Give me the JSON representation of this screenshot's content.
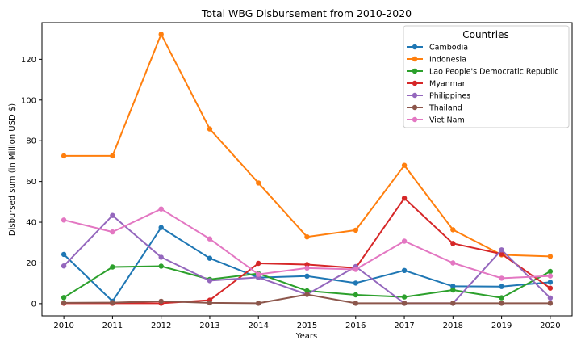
{
  "chart_data": {
    "type": "line",
    "title": "Total WBG Disbursement from 2010-2020",
    "xlabel": "Years",
    "ylabel": "Disbursed sum (in Million USD $)",
    "x": [
      "2010",
      "2011",
      "2012",
      "2013",
      "2014",
      "2015",
      "2016",
      "2017",
      "2018",
      "2019",
      "2020"
    ],
    "xlim": [
      2009.55,
      2020.45
    ],
    "ylim": [
      -6,
      138
    ],
    "yticks": [
      0,
      20,
      40,
      60,
      80,
      100,
      120
    ],
    "grid": false,
    "legend": {
      "title": "Countries",
      "placement": "top-right"
    },
    "series": [
      {
        "name": "Cambodia",
        "color": "#1f77b4",
        "values": [
          24.2,
          1.2,
          37.4,
          22.3,
          12.8,
          13.5,
          10.1,
          16.3,
          8.5,
          8.4,
          10.5
        ]
      },
      {
        "name": "Indonesia",
        "color": "#ff7f0e",
        "values": [
          72.6,
          72.6,
          132.3,
          85.8,
          59.3,
          32.8,
          36.1,
          67.9,
          36.3,
          24.0,
          23.2
        ]
      },
      {
        "name": "Lao People's Democratic Republic",
        "color": "#2ca02c",
        "values": [
          3.0,
          18.0,
          18.4,
          11.9,
          14.8,
          6.3,
          4.3,
          3.3,
          6.7,
          2.9,
          15.8
        ]
      },
      {
        "name": "Myanmar",
        "color": "#d62728",
        "values": [
          0.2,
          0.2,
          0.2,
          1.7,
          19.8,
          19.2,
          17.5,
          51.8,
          29.6,
          24.4,
          7.6
        ]
      },
      {
        "name": "Philippines",
        "color": "#9467bd",
        "values": [
          18.5,
          43.3,
          22.8,
          11.3,
          12.9,
          4.5,
          18.2,
          0.2,
          0.2,
          26.4,
          2.8
        ]
      },
      {
        "name": "Thailand",
        "color": "#8c564b",
        "values": [
          0.4,
          0.5,
          1.2,
          0.4,
          0.2,
          4.5,
          0.2,
          0.2,
          0.2,
          0.2,
          0.2
        ]
      },
      {
        "name": "Viet Nam",
        "color": "#e377c2",
        "values": [
          41.1,
          35.2,
          46.5,
          31.8,
          14.4,
          17.5,
          16.8,
          30.7,
          20.0,
          12.5,
          13.6
        ]
      }
    ]
  }
}
